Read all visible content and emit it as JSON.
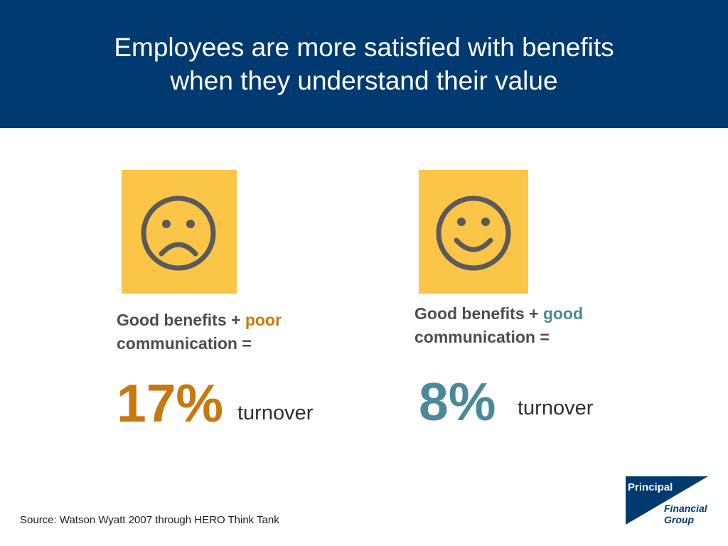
{
  "slide": {
    "title_line1": "Employees are more satisfied with benefits",
    "title_line2": "when they understand their value"
  },
  "colors": {
    "header_bg": "#003a70",
    "face_bg": "#fbc547",
    "poor_accent": "#c8780f",
    "good_accent": "#4a8a98"
  },
  "left_panel": {
    "icon": "sad-face-icon",
    "caption_prefix": "Good benefits + ",
    "caption_highlight": "poor",
    "caption_line2": "communication =",
    "stat": "17%",
    "stat_label": "turnover"
  },
  "right_panel": {
    "icon": "happy-face-icon",
    "caption_prefix": "Good benefits + ",
    "caption_highlight": "good",
    "caption_line2": "communication =",
    "stat": "8%",
    "stat_label": "turnover"
  },
  "footer": {
    "source": "Source:  Watson Wyatt 2007 through HERO Think Tank",
    "logo_name": "Principal",
    "logo_line2": "Financial",
    "logo_line3": "Group"
  }
}
